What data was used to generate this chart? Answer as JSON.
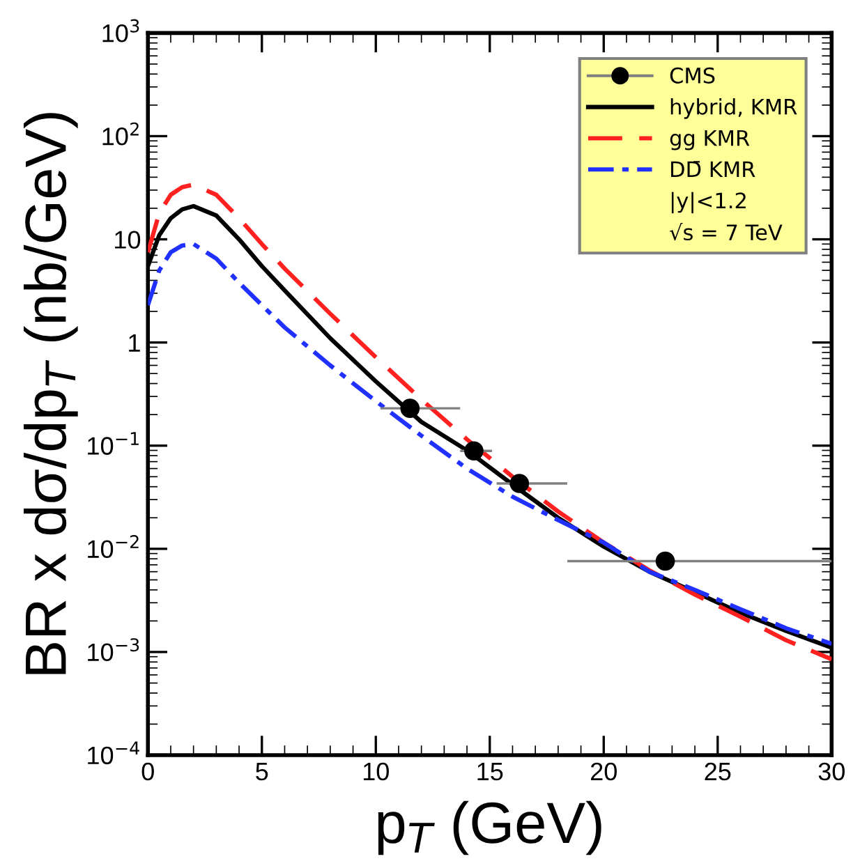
{
  "chart_data": {
    "type": "line",
    "xlabel": "p$_{T}$ (GeV)",
    "ylabel": "BR x dσ/dp$_{T}$ (nb/GeV)",
    "log": "y",
    "xlim": [
      0,
      30
    ],
    "ylim": [
      0.0001,
      1000
    ],
    "xticks": [
      0,
      5,
      10,
      15,
      20,
      25,
      30
    ],
    "yticks": [
      {
        "value": 0.0001,
        "label": "10$^{−4}$"
      },
      {
        "value": 0.001,
        "label": "10$^{−3}$"
      },
      {
        "value": 0.01,
        "label": "10$^{−2}$"
      },
      {
        "value": 0.1,
        "label": "10$^{−1}$"
      },
      1,
      10,
      {
        "value": 100,
        "label": "10$^{2}$"
      },
      {
        "value": 1000,
        "label": "10$^{3}$"
      }
    ],
    "grid": false,
    "legend": "top right",
    "annotations": [
      "|y|<1.2",
      "√s = 7 TeV"
    ],
    "series": [
      {
        "name": "CMS",
        "type": "scatter",
        "color": "#000000",
        "marker": "circle",
        "x": [
          11.5,
          14.3,
          16.3,
          22.7
        ],
        "values": [
          0.23,
          0.089,
          0.043,
          0.0076
        ],
        "xerrors": [
          [
            10.2,
            13.7
          ],
          [
            13.7,
            15.1
          ],
          [
            15.3,
            18.4
          ],
          [
            18.4,
            30
          ]
        ]
      },
      {
        "name": "hybrid, KMR",
        "color": "#000000",
        "line_style": "solid",
        "x": [
          0,
          0.5,
          1,
          1.5,
          2,
          3,
          4,
          5,
          6,
          8,
          10,
          12,
          14,
          16,
          18,
          20,
          22,
          24,
          26,
          28,
          30
        ],
        "values": [
          5.5,
          11,
          16,
          19.5,
          21,
          17,
          10,
          5.5,
          3.2,
          1.1,
          0.42,
          0.17,
          0.09,
          0.042,
          0.02,
          0.0105,
          0.006,
          0.0038,
          0.0024,
          0.0016,
          0.0011
        ]
      },
      {
        "name": "gg KMR",
        "color": "#ff2020",
        "line_style": "dashed",
        "x": [
          0,
          0.5,
          1,
          1.5,
          2,
          3,
          4,
          5,
          6,
          8,
          10,
          12,
          14,
          16,
          18,
          20,
          22,
          24,
          26,
          28,
          30
        ],
        "values": [
          7.5,
          18,
          27,
          32,
          34,
          27,
          16,
          9,
          5.2,
          1.9,
          0.72,
          0.28,
          0.115,
          0.05,
          0.023,
          0.0115,
          0.0062,
          0.0036,
          0.0022,
          0.0013,
          0.00085
        ]
      },
      {
        "name": "DD̄ KMR",
        "color": "#2030ff",
        "line_style": "dotted",
        "x": [
          0,
          0.5,
          1,
          1.5,
          2,
          3,
          4,
          5,
          6,
          8,
          10,
          12,
          14,
          16,
          18,
          20,
          22,
          24,
          26,
          28,
          30
        ],
        "values": [
          2.3,
          5,
          7.5,
          8.7,
          9,
          6.5,
          3.8,
          2.3,
          1.4,
          0.6,
          0.27,
          0.125,
          0.06,
          0.032,
          0.019,
          0.0115,
          0.006,
          0.004,
          0.0026,
          0.0017,
          0.0012
        ]
      }
    ]
  }
}
